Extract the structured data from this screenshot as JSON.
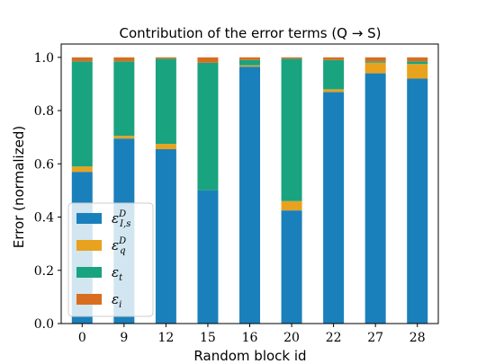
{
  "chart_data": {
    "type": "bar",
    "stacked": true,
    "title": "Contribution of the error terms (Q → S)",
    "xlabel": "Random block id",
    "ylabel": "Error (normalized)",
    "ylim": [
      0,
      1.05
    ],
    "yticks": [
      "0.0",
      "0.2",
      "0.4",
      "0.6",
      "0.8",
      "1.0"
    ],
    "categories": [
      "0",
      "9",
      "12",
      "15",
      "16",
      "20",
      "22",
      "27",
      "28"
    ],
    "series": [
      {
        "name": "ε_{I,s}^D",
        "base": "ε",
        "sub": "I,s",
        "sup": "D",
        "color": "#1a80bb",
        "values": [
          0.57,
          0.695,
          0.655,
          0.5,
          0.965,
          0.425,
          0.87,
          0.94,
          0.92
        ]
      },
      {
        "name": "ε_q^D",
        "base": "ε",
        "sub": "q",
        "sup": "D",
        "color": "#e8a21e",
        "values": [
          0.02,
          0.01,
          0.02,
          0.0,
          0.005,
          0.035,
          0.01,
          0.04,
          0.055
        ]
      },
      {
        "name": "ε_t",
        "base": "ε",
        "sub": "t",
        "sup": "",
        "color": "#1aa37f",
        "values": [
          0.395,
          0.28,
          0.32,
          0.48,
          0.02,
          0.535,
          0.11,
          0.005,
          0.01
        ]
      },
      {
        "name": "ε_i",
        "base": "ε",
        "sub": "i",
        "sup": "",
        "color": "#d96d1f",
        "values": [
          0.015,
          0.015,
          0.005,
          0.02,
          0.01,
          0.005,
          0.01,
          0.015,
          0.015
        ]
      }
    ],
    "legend_position": "lower-left",
    "grid": false
  }
}
